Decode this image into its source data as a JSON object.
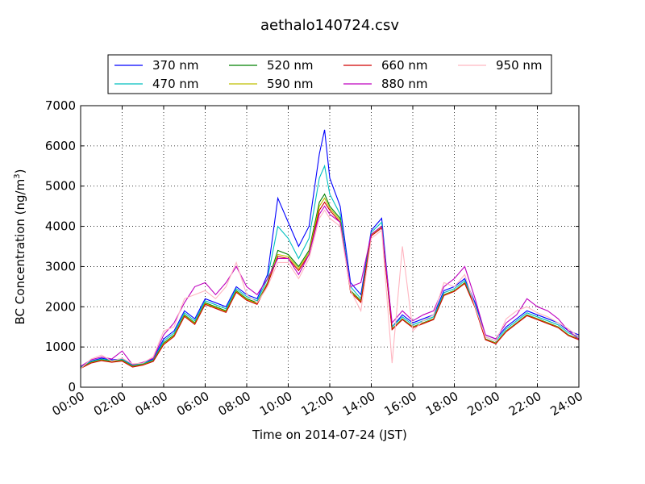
{
  "chart_data": {
    "type": "line",
    "title": "aethalo140724.csv",
    "xlabel": "Time on 2014-07-24 (JST)",
    "ylabel": "BC Concentration (ng/m",
    "ylabel_sup": "3",
    "ylabel_close": ")",
    "xlim": [
      "00:00",
      "24:00"
    ],
    "ylim": [
      0,
      7000
    ],
    "x_ticks": [
      "00:00",
      "02:00",
      "04:00",
      "06:00",
      "08:00",
      "10:00",
      "12:00",
      "14:00",
      "16:00",
      "18:00",
      "20:00",
      "22:00",
      "24:00"
    ],
    "y_ticks": [
      0,
      1000,
      2000,
      3000,
      4000,
      5000,
      6000,
      7000
    ],
    "grid": true,
    "legend_position": "top",
    "x": [
      "00:00",
      "00:30",
      "01:00",
      "01:30",
      "02:00",
      "02:30",
      "03:00",
      "03:30",
      "04:00",
      "04:30",
      "05:00",
      "05:30",
      "06:00",
      "06:30",
      "07:00",
      "07:30",
      "08:00",
      "08:30",
      "09:00",
      "09:30",
      "10:00",
      "10:30",
      "11:00",
      "11:30",
      "11:45",
      "12:00",
      "12:30",
      "13:00",
      "13:30",
      "14:00",
      "14:30",
      "15:00",
      "15:30",
      "16:00",
      "16:30",
      "17:00",
      "17:30",
      "18:00",
      "18:30",
      "19:00",
      "19:30",
      "20:00",
      "20:30",
      "21:00",
      "21:30",
      "22:00",
      "22:30",
      "23:00",
      "23:30",
      "24:00"
    ],
    "series": [
      {
        "name": "370 nm",
        "color": "#0000ff",
        "values": [
          500,
          650,
          720,
          680,
          700,
          550,
          600,
          700,
          1200,
          1400,
          1900,
          1700,
          2200,
          2100,
          2000,
          2500,
          2300,
          2200,
          2800,
          4700,
          4100,
          3500,
          4000,
          5800,
          6400,
          5200,
          4500,
          2600,
          2300,
          3900,
          4200,
          1500,
          1800,
          1600,
          1700,
          1800,
          2400,
          2500,
          2700,
          2100,
          1300,
          1200,
          1500,
          1700,
          1900,
          1800,
          1700,
          1600,
          1400,
          1300
        ]
      },
      {
        "name": "470 nm",
        "color": "#00bfbf",
        "values": [
          500,
          640,
          700,
          660,
          690,
          540,
          590,
          680,
          1150,
          1350,
          1850,
          1650,
          2150,
          2050,
          1950,
          2450,
          2250,
          2150,
          2700,
          4000,
          3700,
          3200,
          3700,
          5200,
          5500,
          4800,
          4300,
          2500,
          2200,
          3850,
          4100,
          1500,
          1750,
          1550,
          1650,
          1750,
          2350,
          2450,
          2650,
          2050,
          1250,
          1150,
          1450,
          1650,
          1850,
          1750,
          1650,
          1550,
          1350,
          1250
        ]
      },
      {
        "name": "520 nm",
        "color": "#008000",
        "values": [
          480,
          620,
          680,
          640,
          670,
          520,
          570,
          660,
          1100,
          1300,
          1800,
          1600,
          2100,
          2000,
          1900,
          2400,
          2200,
          2100,
          2600,
          3400,
          3300,
          3000,
          3400,
          4600,
          4800,
          4500,
          4200,
          2400,
          2150,
          3800,
          4000,
          1450,
          1700,
          1500,
          1600,
          1700,
          2300,
          2400,
          2600,
          2000,
          1200,
          1100,
          1400,
          1600,
          1800,
          1700,
          1600,
          1500,
          1300,
          1200
        ]
      },
      {
        "name": "590 nm",
        "color": "#bfbf00",
        "values": [
          470,
          610,
          670,
          630,
          660,
          510,
          560,
          650,
          1080,
          1280,
          1780,
          1580,
          2080,
          1980,
          1880,
          2380,
          2180,
          2080,
          2580,
          3300,
          3250,
          2950,
          3350,
          4500,
          4700,
          4450,
          4150,
          2380,
          2130,
          3780,
          3980,
          1440,
          1690,
          1490,
          1590,
          1690,
          2290,
          2390,
          2590,
          1990,
          1190,
          1090,
          1390,
          1590,
          1790,
          1690,
          1590,
          1490,
          1290,
          1190
        ]
      },
      {
        "name": "660 nm",
        "color": "#d00000",
        "values": [
          470,
          600,
          660,
          620,
          650,
          500,
          550,
          640,
          1060,
          1260,
          1760,
          1560,
          2060,
          1960,
          1860,
          2360,
          2160,
          2060,
          2560,
          3250,
          3200,
          2900,
          3300,
          4400,
          4600,
          4400,
          4100,
          2360,
          2110,
          3760,
          3960,
          1430,
          1680,
          1480,
          1580,
          1680,
          2280,
          2380,
          2580,
          1980,
          1180,
          1080,
          1380,
          1580,
          1780,
          1680,
          1580,
          1480,
          1280,
          1180
        ]
      },
      {
        "name": "880 nm",
        "color": "#bf00bf",
        "values": [
          520,
          680,
          750,
          700,
          900,
          560,
          620,
          720,
          1300,
          1600,
          2100,
          2500,
          2600,
          2300,
          2600,
          3000,
          2500,
          2300,
          2700,
          3200,
          3200,
          2800,
          3300,
          4300,
          4500,
          4300,
          4100,
          2500,
          2600,
          3800,
          4000,
          1600,
          1900,
          1650,
          1800,
          1900,
          2500,
          2700,
          3000,
          2200,
          1300,
          1200,
          1600,
          1800,
          2200,
          2000,
          1900,
          1700,
          1400,
          1200
        ]
      },
      {
        "name": "950 nm",
        "color": "#ffb6c1",
        "values": [
          460,
          700,
          800,
          650,
          720,
          580,
          600,
          760,
          1400,
          1500,
          2200,
          2300,
          2400,
          2200,
          2500,
          3100,
          2300,
          2100,
          2500,
          3100,
          3100,
          2700,
          3200,
          4200,
          4400,
          4200,
          4000,
          2400,
          1900,
          3700,
          3900,
          600,
          3500,
          1400,
          1650,
          1800,
          2600,
          2500,
          2800,
          2000,
          1250,
          1150,
          1700,
          1900,
          2000,
          1850,
          1750,
          1600,
          1450,
          1250
        ]
      }
    ]
  }
}
